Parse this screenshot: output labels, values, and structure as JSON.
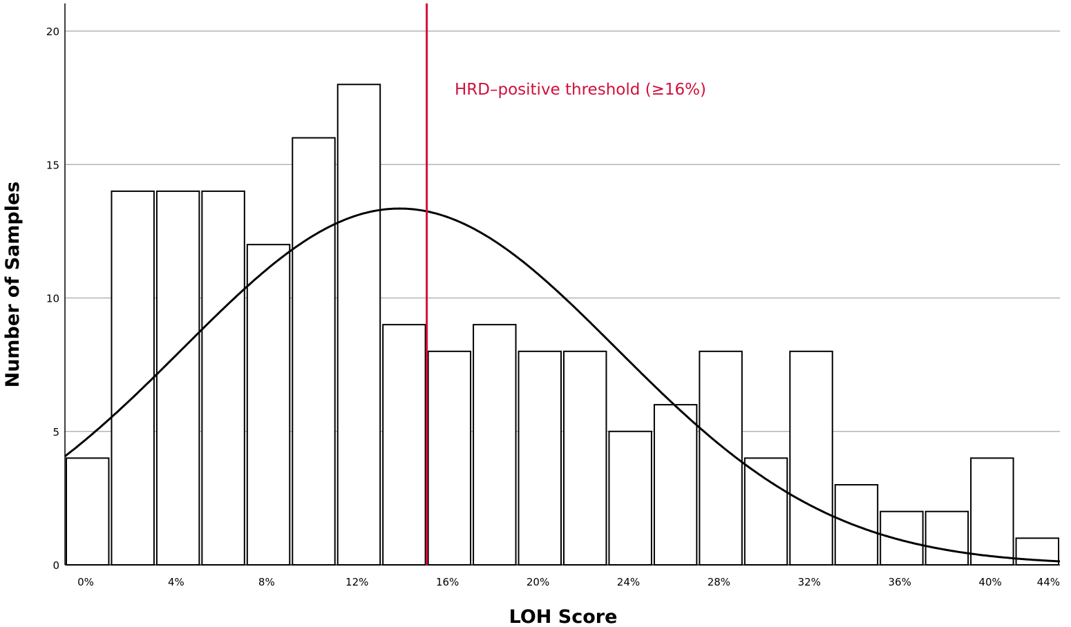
{
  "chart_data": {
    "type": "bar",
    "subtype": "histogram",
    "title": "",
    "xlabel": "LOH Score",
    "ylabel": "Number of Samples",
    "xlim": [
      0,
      44
    ],
    "ylim": [
      0,
      21
    ],
    "grid": true,
    "bin_width": 2,
    "bins": [
      {
        "start": 0,
        "end": 2,
        "count": 4
      },
      {
        "start": 2,
        "end": 4,
        "count": 14
      },
      {
        "start": 4,
        "end": 6,
        "count": 14
      },
      {
        "start": 6,
        "end": 8,
        "count": 14
      },
      {
        "start": 8,
        "end": 10,
        "count": 12
      },
      {
        "start": 10,
        "end": 12,
        "count": 16
      },
      {
        "start": 12,
        "end": 14,
        "count": 18
      },
      {
        "start": 14,
        "end": 16,
        "count": 9
      },
      {
        "start": 16,
        "end": 18,
        "count": 8
      },
      {
        "start": 18,
        "end": 20,
        "count": 9
      },
      {
        "start": 20,
        "end": 22,
        "count": 8
      },
      {
        "start": 22,
        "end": 24,
        "count": 8
      },
      {
        "start": 24,
        "end": 26,
        "count": 5
      },
      {
        "start": 26,
        "end": 28,
        "count": 6
      },
      {
        "start": 28,
        "end": 30,
        "count": 8
      },
      {
        "start": 30,
        "end": 32,
        "count": 4
      },
      {
        "start": 32,
        "end": 34,
        "count": 8
      },
      {
        "start": 34,
        "end": 36,
        "count": 3
      },
      {
        "start": 36,
        "end": 38,
        "count": 2
      },
      {
        "start": 38,
        "end": 40,
        "count": 2
      },
      {
        "start": 40,
        "end": 42,
        "count": 4
      },
      {
        "start": 42,
        "end": 44,
        "count": 1
      }
    ],
    "x_ticks": [
      {
        "value": 0,
        "label": "0%"
      },
      {
        "value": 4,
        "label": "4%"
      },
      {
        "value": 8,
        "label": "8%"
      },
      {
        "value": 12,
        "label": "12%"
      },
      {
        "value": 16,
        "label": "16%"
      },
      {
        "value": 20,
        "label": "20%"
      },
      {
        "value": 24,
        "label": "24%"
      },
      {
        "value": 28,
        "label": "28%"
      },
      {
        "value": 32,
        "label": "32%"
      },
      {
        "value": 36,
        "label": "36%"
      },
      {
        "value": 40,
        "label": "40%"
      },
      {
        "value": 44,
        "label": "44%"
      }
    ],
    "y_ticks": [
      {
        "value": 0,
        "label": "0"
      },
      {
        "value": 5,
        "label": "5"
      },
      {
        "value": 10,
        "label": "10"
      },
      {
        "value": 15,
        "label": "15"
      },
      {
        "value": 20,
        "label": "20"
      }
    ],
    "normal_curve": {
      "mean": 14.8,
      "sd": 9.6,
      "peak": 13.35
    },
    "threshold": {
      "value": 16,
      "label": "HRD–positive threshold (≥16%)",
      "color": "#d0103a"
    },
    "colors": {
      "bar_fill": "#ffffff",
      "bar_stroke": "#000000",
      "grid": "#b3b3b3",
      "curve": "#000000"
    }
  }
}
